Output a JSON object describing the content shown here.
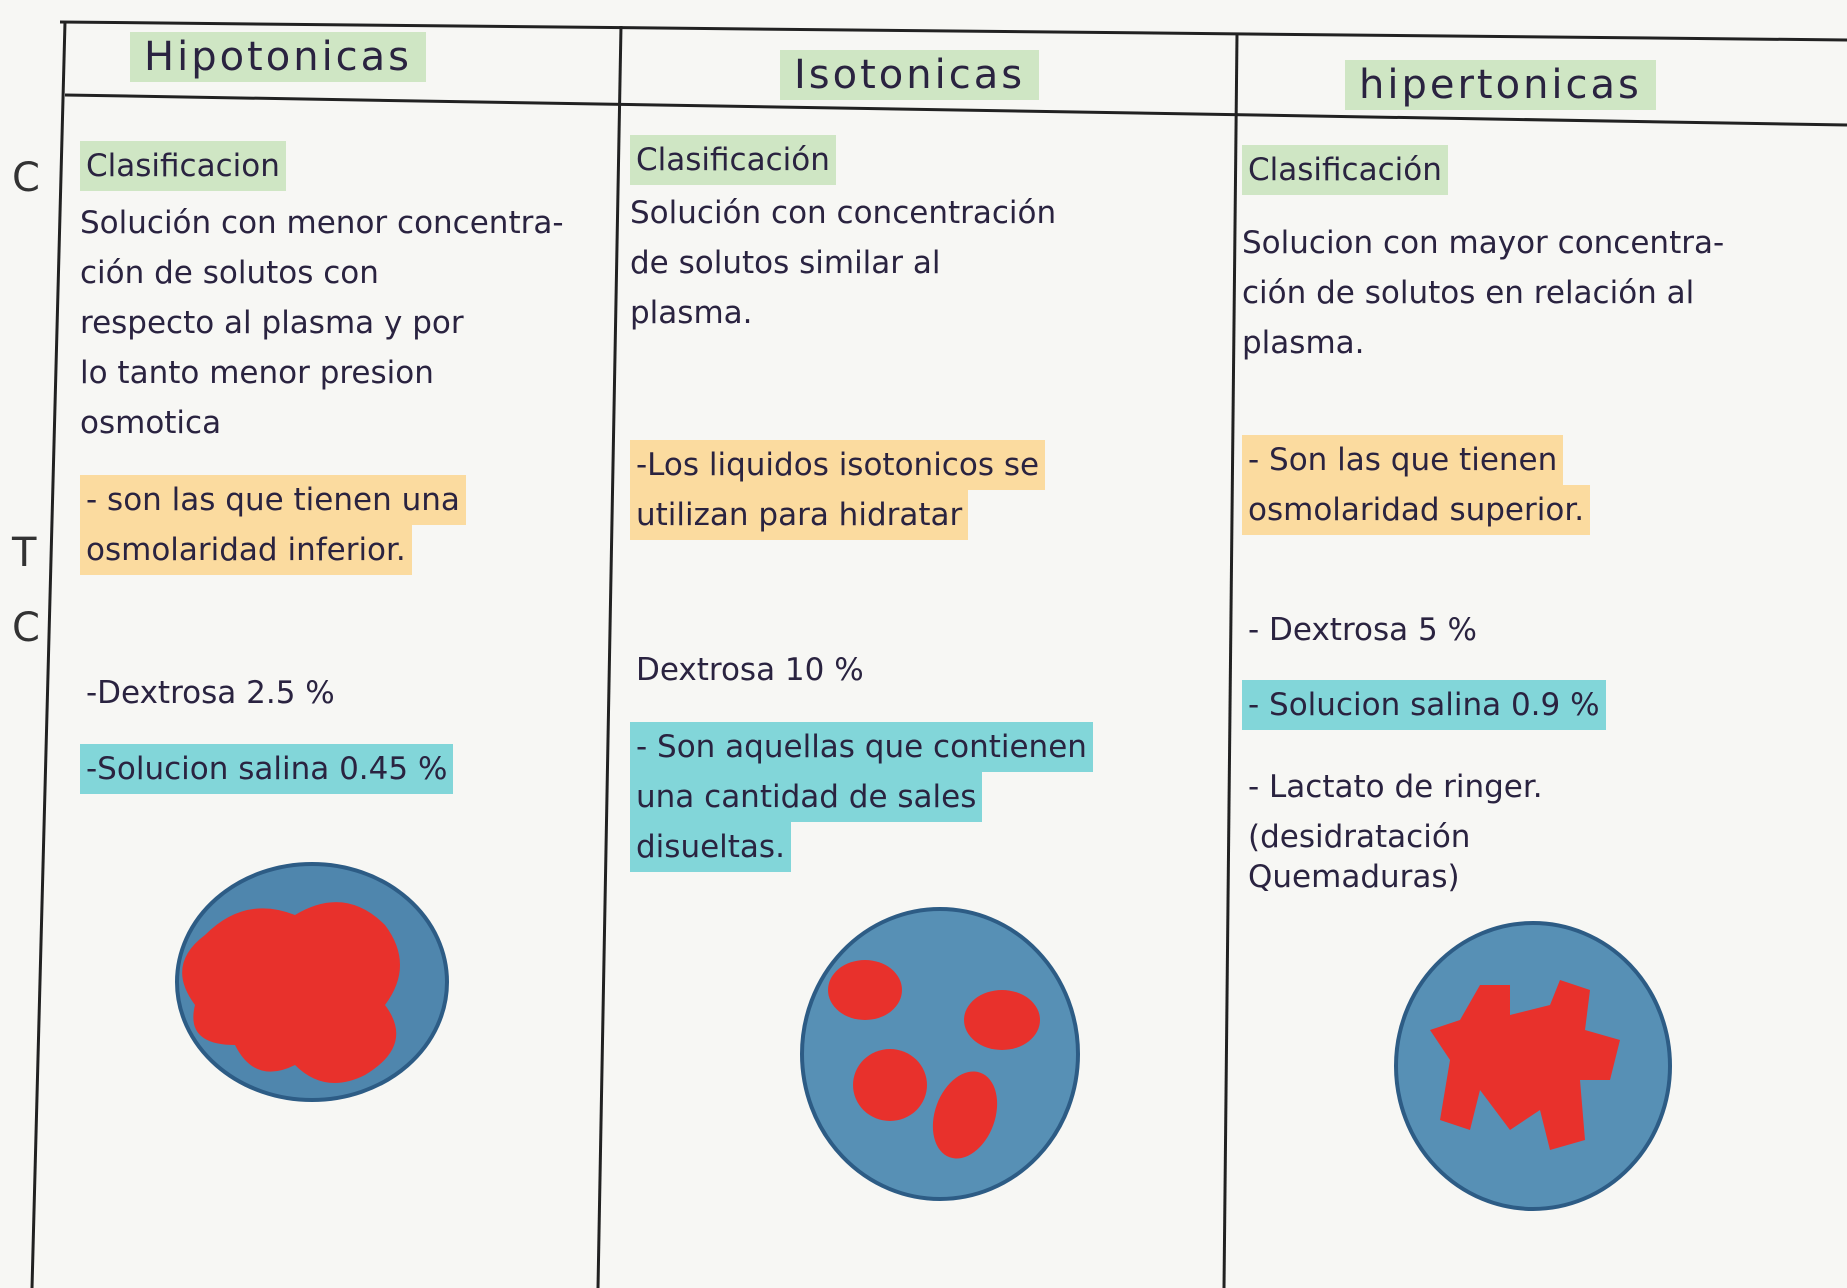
{
  "margin": [
    "C",
    "T",
    "C"
  ],
  "table": {
    "columns": [
      {
        "header": "Hipotonicas",
        "classification_label": "Clasificacion",
        "definition": [
          "Solución con menor concentra-",
          "ción de solutos con",
          "respecto al plasma y por",
          "lo tanto menor presion",
          "osmotica"
        ],
        "note": [
          "- son las que tienen una",
          "osmolaridad inferior."
        ],
        "items": [
          "-Dextrosa   2.5 %",
          "-Solucion salina  0.45 %"
        ]
      },
      {
        "header": "Isotonicas",
        "classification_label": "Clasificación",
        "definition": [
          "Solución con concentración",
          "de solutos similar al",
          "plasma."
        ],
        "note": [
          "-Los liquidos isotonicos se",
          "utilizan para hidratar"
        ],
        "items": [
          "Dextrosa 10 %",
          "- Son aquellas que contienen",
          "una cantidad de sales",
          "disueltas."
        ]
      },
      {
        "header": "hipertonicas",
        "classification_label": "Clasificación",
        "definition": [
          "Solucion con mayor concentra-",
          "ción de solutos en relación al",
          "plasma."
        ],
        "note": [
          "- Son las que tienen",
          "osmolaridad superior."
        ],
        "items": [
          "- Dextrosa   5 %",
          "- Solucion salina  0.9 %",
          "- Lactato de ringer.",
          "(desidratación",
          "Quemaduras)"
        ]
      }
    ]
  }
}
